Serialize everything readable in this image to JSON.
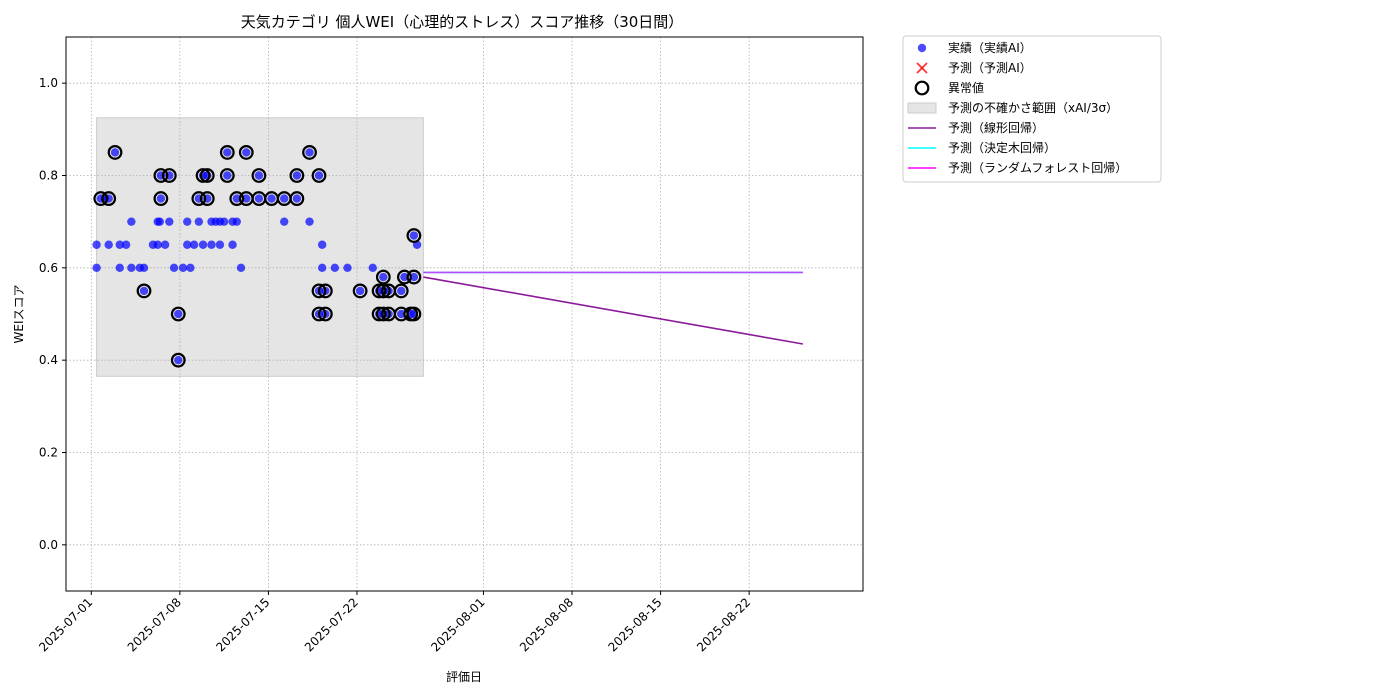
{
  "chart_data": {
    "type": "scatter",
    "title": "天気カテゴリ 個人WEI（心理的ストレス）スコア推移（30日間）",
    "xlabel": "評価日",
    "ylabel": "WEIスコア",
    "xlim": [
      "2025-06-29",
      "2025-08-31"
    ],
    "ylim": [
      -0.1,
      1.1
    ],
    "yticks": [
      0.0,
      0.2,
      0.4,
      0.6,
      0.8,
      1.0
    ],
    "ytick_labels": [
      "0.0",
      "0.2",
      "0.4",
      "0.6",
      "0.8",
      "1.0"
    ],
    "xticks": [
      "2025-07-01",
      "2025-07-08",
      "2025-07-15",
      "2025-07-22",
      "2025-08-01",
      "2025-08-08",
      "2025-08-15",
      "2025-08-22"
    ],
    "grid": true,
    "legend_position": "outside-top-right",
    "colors": {
      "actual": "#0000ff",
      "predicted": "#ff0000",
      "anomaly": "#000000",
      "band": "#e5e5e5",
      "linear": "#8b1a9a",
      "tree": "#00ffff",
      "forest": "#ff00ff"
    },
    "uncertainty_band": {
      "x": [
        "2025-07-01 10:00",
        "2025-07-27 06:00"
      ],
      "y": [
        0.365,
        0.925
      ]
    },
    "series": [
      {
        "name": "実績（実績AI）",
        "kind": "scatter",
        "points": [
          [
            "2025-07-01 10:00",
            0.65
          ],
          [
            "2025-07-01 10:00",
            0.6
          ],
          [
            "2025-07-01 18:00",
            0.75
          ],
          [
            "2025-07-02 02:00",
            0.75
          ],
          [
            "2025-07-02 09:00",
            0.75
          ],
          [
            "2025-07-02 09:00",
            0.65
          ],
          [
            "2025-07-02 21:00",
            0.85
          ],
          [
            "2025-07-03 06:00",
            0.65
          ],
          [
            "2025-07-03 06:00",
            0.6
          ],
          [
            "2025-07-03 18:00",
            0.65
          ],
          [
            "2025-07-04 04:00",
            0.7
          ],
          [
            "2025-07-04 04:00",
            0.6
          ],
          [
            "2025-07-04 20:00",
            0.6
          ],
          [
            "2025-07-05 04:00",
            0.55
          ],
          [
            "2025-07-05 04:00",
            0.6
          ],
          [
            "2025-07-05 21:00",
            0.65
          ],
          [
            "2025-07-06 06:00",
            0.65
          ],
          [
            "2025-07-06 06:00",
            0.7
          ],
          [
            "2025-07-06 10:00",
            0.7
          ],
          [
            "2025-07-06 12:00",
            0.8
          ],
          [
            "2025-07-06 12:00",
            0.75
          ],
          [
            "2025-07-06 20:00",
            0.65
          ],
          [
            "2025-07-07 04:00",
            0.8
          ],
          [
            "2025-07-07 04:00",
            0.7
          ],
          [
            "2025-07-07 13:00",
            0.6
          ],
          [
            "2025-07-07 21:00",
            0.5
          ],
          [
            "2025-07-07 21:00",
            0.4
          ],
          [
            "2025-07-08 06:00",
            0.6
          ],
          [
            "2025-07-08 14:00",
            0.65
          ],
          [
            "2025-07-08 14:00",
            0.7
          ],
          [
            "2025-07-08 20:00",
            0.6
          ],
          [
            "2025-07-09 03:00",
            0.65
          ],
          [
            "2025-07-09 12:00",
            0.75
          ],
          [
            "2025-07-09 12:00",
            0.7
          ],
          [
            "2025-07-09 20:00",
            0.8
          ],
          [
            "2025-07-09 20:00",
            0.65
          ],
          [
            "2025-07-10 04:00",
            0.75
          ],
          [
            "2025-07-10 04:00",
            0.8
          ],
          [
            "2025-07-10 12:00",
            0.7
          ],
          [
            "2025-07-10 12:00",
            0.65
          ],
          [
            "2025-07-10 20:00",
            0.7
          ],
          [
            "2025-07-11 04:00",
            0.65
          ],
          [
            "2025-07-11 04:00",
            0.7
          ],
          [
            "2025-07-11 12:00",
            0.7
          ],
          [
            "2025-07-11 18:00",
            0.85
          ],
          [
            "2025-07-11 18:00",
            0.8
          ],
          [
            "2025-07-12 04:00",
            0.65
          ],
          [
            "2025-07-12 04:00",
            0.7
          ],
          [
            "2025-07-12 12:00",
            0.75
          ],
          [
            "2025-07-12 12:00",
            0.7
          ],
          [
            "2025-07-12 20:00",
            0.6
          ],
          [
            "2025-07-13 06:00",
            0.85
          ],
          [
            "2025-07-13 06:00",
            0.75
          ],
          [
            "2025-07-14 06:00",
            0.8
          ],
          [
            "2025-07-14 06:00",
            0.75
          ],
          [
            "2025-07-15 06:00",
            0.75
          ],
          [
            "2025-07-16 06:00",
            0.75
          ],
          [
            "2025-07-16 06:00",
            0.7
          ],
          [
            "2025-07-17 06:00",
            0.75
          ],
          [
            "2025-07-17 06:00",
            0.8
          ],
          [
            "2025-07-18 06:00",
            0.85
          ],
          [
            "2025-07-18 06:00",
            0.7
          ],
          [
            "2025-07-19 00:00",
            0.8
          ],
          [
            "2025-07-19 00:00",
            0.55
          ],
          [
            "2025-07-19 00:00",
            0.5
          ],
          [
            "2025-07-19 06:00",
            0.65
          ],
          [
            "2025-07-19 06:00",
            0.6
          ],
          [
            "2025-07-19 12:00",
            0.55
          ],
          [
            "2025-07-19 12:00",
            0.5
          ],
          [
            "2025-07-20 06:00",
            0.6
          ],
          [
            "2025-07-21 06:00",
            0.6
          ],
          [
            "2025-07-22 06:00",
            0.55
          ],
          [
            "2025-07-23 06:00",
            0.6
          ],
          [
            "2025-07-23 18:00",
            0.55
          ],
          [
            "2025-07-23 18:00",
            0.5
          ],
          [
            "2025-07-24 02:00",
            0.58
          ],
          [
            "2025-07-24 02:00",
            0.55
          ],
          [
            "2025-07-24 02:00",
            0.5
          ],
          [
            "2025-07-24 12:00",
            0.55
          ],
          [
            "2025-07-24 12:00",
            0.5
          ],
          [
            "2025-07-25 12:00",
            0.55
          ],
          [
            "2025-07-25 12:00",
            0.5
          ],
          [
            "2025-07-25 18:00",
            0.58
          ],
          [
            "2025-07-26 06:00",
            0.5
          ],
          [
            "2025-07-26 12:00",
            0.67
          ],
          [
            "2025-07-26 12:00",
            0.58
          ],
          [
            "2025-07-26 12:00",
            0.5
          ],
          [
            "2025-07-26 18:00",
            0.65
          ]
        ]
      },
      {
        "name": "予測（予測AI）",
        "kind": "scatter",
        "points": []
      },
      {
        "name": "異常値",
        "kind": "scatter",
        "points": [
          [
            "2025-07-01 18:00",
            0.75
          ],
          [
            "2025-07-02 09:00",
            0.75
          ],
          [
            "2025-07-02 21:00",
            0.85
          ],
          [
            "2025-07-05 04:00",
            0.55
          ],
          [
            "2025-07-06 12:00",
            0.8
          ],
          [
            "2025-07-06 12:00",
            0.75
          ],
          [
            "2025-07-07 04:00",
            0.8
          ],
          [
            "2025-07-07 21:00",
            0.5
          ],
          [
            "2025-07-07 21:00",
            0.4
          ],
          [
            "2025-07-09 12:00",
            0.75
          ],
          [
            "2025-07-09 20:00",
            0.8
          ],
          [
            "2025-07-10 04:00",
            0.75
          ],
          [
            "2025-07-10 04:00",
            0.8
          ],
          [
            "2025-07-11 18:00",
            0.85
          ],
          [
            "2025-07-11 18:00",
            0.8
          ],
          [
            "2025-07-12 12:00",
            0.75
          ],
          [
            "2025-07-13 06:00",
            0.85
          ],
          [
            "2025-07-13 06:00",
            0.75
          ],
          [
            "2025-07-14 06:00",
            0.8
          ],
          [
            "2025-07-14 06:00",
            0.75
          ],
          [
            "2025-07-15 06:00",
            0.75
          ],
          [
            "2025-07-16 06:00",
            0.75
          ],
          [
            "2025-07-17 06:00",
            0.75
          ],
          [
            "2025-07-17 06:00",
            0.8
          ],
          [
            "2025-07-18 06:00",
            0.85
          ],
          [
            "2025-07-19 00:00",
            0.8
          ],
          [
            "2025-07-19 00:00",
            0.55
          ],
          [
            "2025-07-19 00:00",
            0.5
          ],
          [
            "2025-07-19 12:00",
            0.55
          ],
          [
            "2025-07-19 12:00",
            0.5
          ],
          [
            "2025-07-22 06:00",
            0.55
          ],
          [
            "2025-07-23 18:00",
            0.55
          ],
          [
            "2025-07-23 18:00",
            0.5
          ],
          [
            "2025-07-24 02:00",
            0.58
          ],
          [
            "2025-07-24 02:00",
            0.55
          ],
          [
            "2025-07-24 02:00",
            0.5
          ],
          [
            "2025-07-24 12:00",
            0.55
          ],
          [
            "2025-07-24 12:00",
            0.5
          ],
          [
            "2025-07-25 12:00",
            0.55
          ],
          [
            "2025-07-25 12:00",
            0.5
          ],
          [
            "2025-07-25 18:00",
            0.58
          ],
          [
            "2025-07-26 06:00",
            0.5
          ],
          [
            "2025-07-26 12:00",
            0.67
          ],
          [
            "2025-07-26 12:00",
            0.58
          ],
          [
            "2025-07-26 12:00",
            0.5
          ]
        ]
      },
      {
        "name": "予測の不確かさ範囲（xAI/3σ）",
        "kind": "band"
      },
      {
        "name": "予測（線形回帰）",
        "kind": "line",
        "points": [
          [
            "2025-07-27 06:00",
            0.58
          ],
          [
            "2025-08-26 06:00",
            0.435
          ]
        ]
      },
      {
        "name": "予測（決定木回帰）",
        "kind": "line",
        "points": [
          [
            "2025-07-27 06:00",
            0.59
          ],
          [
            "2025-08-26 06:00",
            0.59
          ]
        ]
      },
      {
        "name": "予測（ランダムフォレスト回帰）",
        "kind": "line",
        "points": [
          [
            "2025-07-27 06:00",
            0.59
          ],
          [
            "2025-08-26 06:00",
            0.59
          ]
        ]
      }
    ]
  }
}
